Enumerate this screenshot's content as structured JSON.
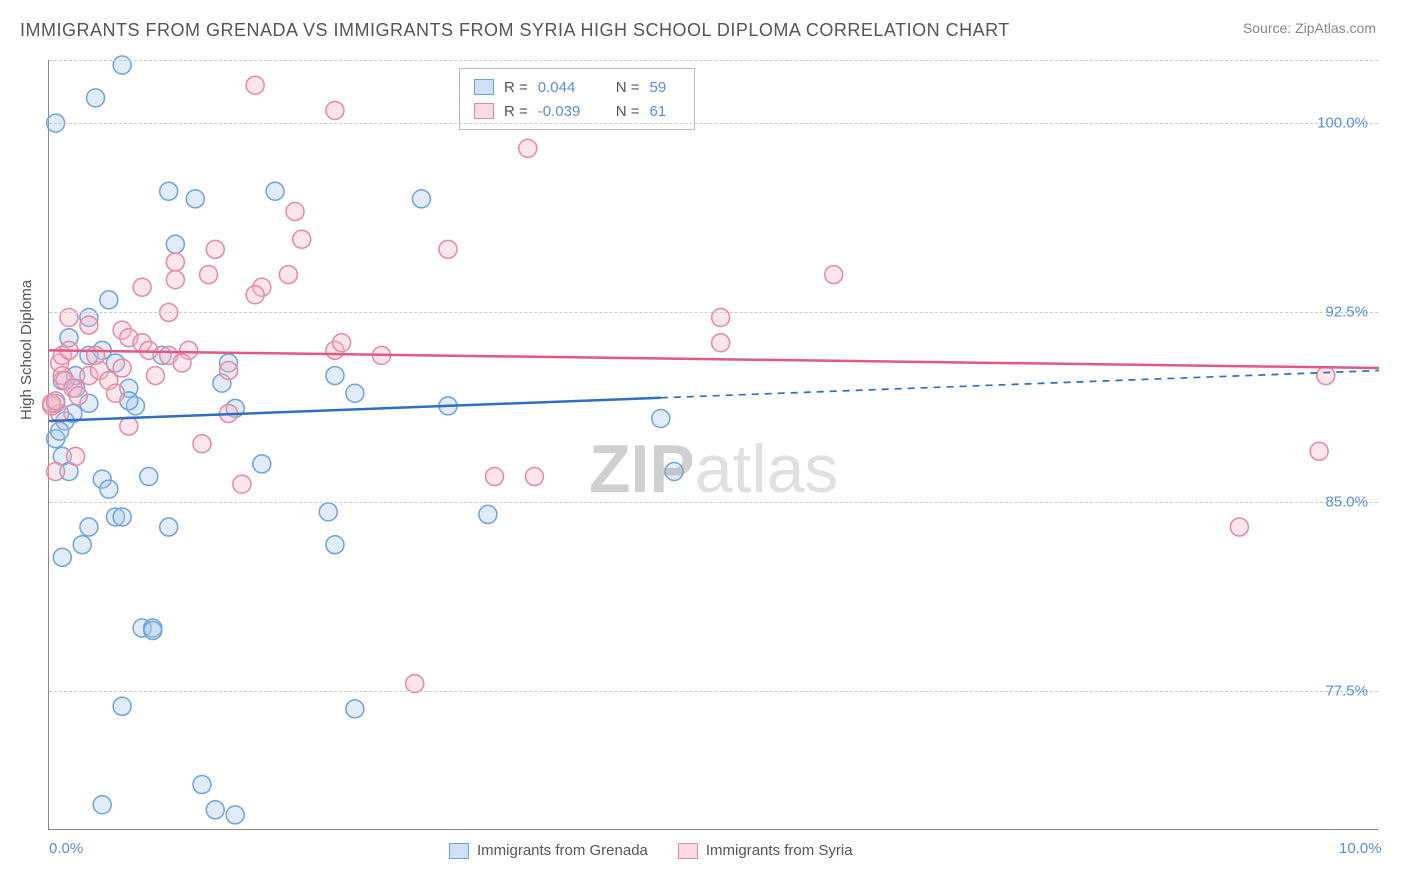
{
  "title": "IMMIGRANTS FROM GRENADA VS IMMIGRANTS FROM SYRIA HIGH SCHOOL DIPLOMA CORRELATION CHART",
  "source": "Source: ZipAtlas.com",
  "ylabel": "High School Diploma",
  "watermark_bold": "ZIP",
  "watermark_light": "atlas",
  "chart": {
    "type": "scatter",
    "xlim": [
      0.0,
      10.0
    ],
    "ylim": [
      72.0,
      102.5
    ],
    "xtick_labels": [
      {
        "x": 0.0,
        "label": "0.0%"
      },
      {
        "x": 10.0,
        "label": "10.0%"
      }
    ],
    "ytick_labels": [
      {
        "y": 77.5,
        "label": "77.5%"
      },
      {
        "y": 85.0,
        "label": "85.0%"
      },
      {
        "y": 92.5,
        "label": "92.5%"
      },
      {
        "y": 100.0,
        "label": "100.0%"
      }
    ],
    "grid_y": [
      77.5,
      85.0,
      92.5,
      100.0,
      102.5
    ],
    "grid_color": "#cccccc",
    "background_color": "#ffffff",
    "marker_radius": 9,
    "marker_fill_opacity": 0.35,
    "marker_stroke_width": 1.5,
    "series": [
      {
        "name": "Immigrants from Grenada",
        "color_fill": "#a8c8ec",
        "color_stroke": "#6fa3dd",
        "swatch_fill": "#cde0f5",
        "swatch_stroke": "#6fa3dd",
        "R": "0.044",
        "N": "59",
        "trend": {
          "y_at_x0": 88.2,
          "y_at_x10": 90.2,
          "solid_until_x": 4.6,
          "color": "#2e6fc2",
          "width": 2.5
        },
        "points": [
          [
            0.55,
            102.3
          ],
          [
            0.05,
            100.0
          ],
          [
            0.9,
            97.3
          ],
          [
            1.1,
            97.0
          ],
          [
            1.7,
            97.3
          ],
          [
            2.8,
            97.0
          ],
          [
            0.95,
            95.2
          ],
          [
            0.3,
            92.3
          ],
          [
            0.15,
            91.5
          ],
          [
            0.3,
            90.8
          ],
          [
            0.1,
            89.8
          ],
          [
            0.2,
            89.5
          ],
          [
            0.05,
            88.9
          ],
          [
            0.18,
            88.5
          ],
          [
            0.45,
            93.0
          ],
          [
            0.6,
            89.5
          ],
          [
            0.65,
            88.8
          ],
          [
            1.3,
            89.7
          ],
          [
            1.35,
            90.5
          ],
          [
            1.4,
            88.7
          ],
          [
            2.15,
            90.0
          ],
          [
            2.3,
            89.3
          ],
          [
            3.0,
            88.8
          ],
          [
            4.6,
            88.3
          ],
          [
            0.05,
            87.5
          ],
          [
            0.1,
            86.8
          ],
          [
            0.15,
            86.2
          ],
          [
            0.4,
            85.9
          ],
          [
            0.45,
            85.5
          ],
          [
            0.75,
            86.0
          ],
          [
            0.5,
            84.4
          ],
          [
            0.55,
            84.4
          ],
          [
            0.3,
            84.0
          ],
          [
            0.25,
            83.3
          ],
          [
            4.7,
            86.2
          ],
          [
            2.15,
            83.3
          ],
          [
            0.9,
            84.0
          ],
          [
            3.3,
            84.5
          ],
          [
            0.1,
            82.8
          ],
          [
            0.7,
            80.0
          ],
          [
            0.78,
            80.0
          ],
          [
            0.78,
            79.9
          ],
          [
            0.55,
            76.9
          ],
          [
            2.3,
            76.8
          ],
          [
            1.15,
            73.8
          ],
          [
            0.4,
            73.0
          ],
          [
            1.25,
            72.8
          ],
          [
            1.4,
            72.6
          ],
          [
            0.6,
            89.0
          ],
          [
            0.4,
            91.0
          ],
          [
            0.5,
            90.5
          ],
          [
            0.85,
            90.8
          ],
          [
            0.2,
            90.0
          ],
          [
            0.3,
            88.9
          ],
          [
            0.12,
            88.2
          ],
          [
            0.08,
            87.8
          ],
          [
            1.6,
            86.5
          ],
          [
            2.1,
            84.6
          ],
          [
            0.35,
            101.0
          ]
        ]
      },
      {
        "name": "Immigrants from Syria",
        "color_fill": "#f5b8c6",
        "color_stroke": "#e68aa3",
        "swatch_fill": "#fadbe3",
        "swatch_stroke": "#e68aa3",
        "R": "-0.039",
        "N": "61",
        "trend": {
          "y_at_x0": 91.0,
          "y_at_x10": 90.3,
          "solid_until_x": 10.0,
          "color": "#e05a85",
          "width": 2.5
        },
        "points": [
          [
            1.55,
            101.5
          ],
          [
            2.15,
            100.5
          ],
          [
            3.6,
            99.0
          ],
          [
            1.85,
            96.5
          ],
          [
            1.9,
            95.4
          ],
          [
            1.25,
            95.0
          ],
          [
            0.95,
            93.8
          ],
          [
            1.6,
            93.5
          ],
          [
            1.55,
            93.2
          ],
          [
            3.0,
            95.0
          ],
          [
            0.15,
            92.3
          ],
          [
            0.3,
            92.0
          ],
          [
            0.55,
            91.8
          ],
          [
            0.6,
            91.5
          ],
          [
            0.7,
            91.3
          ],
          [
            0.75,
            91.0
          ],
          [
            0.9,
            90.8
          ],
          [
            1.05,
            91.0
          ],
          [
            0.08,
            90.5
          ],
          [
            0.1,
            90.0
          ],
          [
            0.12,
            89.8
          ],
          [
            0.18,
            89.5
          ],
          [
            0.22,
            89.2
          ],
          [
            0.3,
            90.0
          ],
          [
            0.38,
            90.2
          ],
          [
            0.45,
            89.8
          ],
          [
            0.5,
            89.3
          ],
          [
            0.55,
            90.3
          ],
          [
            0.8,
            90.0
          ],
          [
            1.35,
            90.2
          ],
          [
            1.2,
            94.0
          ],
          [
            2.15,
            91.0
          ],
          [
            5.9,
            94.0
          ],
          [
            5.05,
            92.3
          ],
          [
            5.05,
            91.3
          ],
          [
            9.6,
            90.0
          ],
          [
            0.08,
            88.5
          ],
          [
            0.02,
            88.8
          ],
          [
            0.02,
            88.9
          ],
          [
            0.05,
            89.0
          ],
          [
            0.6,
            88.0
          ],
          [
            1.35,
            88.5
          ],
          [
            2.5,
            90.8
          ],
          [
            0.2,
            86.8
          ],
          [
            1.15,
            87.3
          ],
          [
            1.45,
            85.7
          ],
          [
            3.35,
            86.0
          ],
          [
            3.65,
            86.0
          ],
          [
            9.55,
            87.0
          ],
          [
            8.95,
            84.0
          ],
          [
            2.75,
            77.8
          ],
          [
            0.1,
            90.8
          ],
          [
            0.15,
            91.0
          ],
          [
            0.05,
            86.2
          ],
          [
            1.0,
            90.5
          ],
          [
            0.35,
            90.8
          ],
          [
            0.95,
            94.5
          ],
          [
            2.2,
            91.3
          ],
          [
            0.9,
            92.5
          ],
          [
            1.8,
            94.0
          ],
          [
            0.7,
            93.5
          ]
        ]
      }
    ],
    "legend_top": {
      "r_label": "R =",
      "n_label": "N ="
    },
    "legend_bottom_labels": [
      "Immigrants from Grenada",
      "Immigrants from Syria"
    ]
  }
}
